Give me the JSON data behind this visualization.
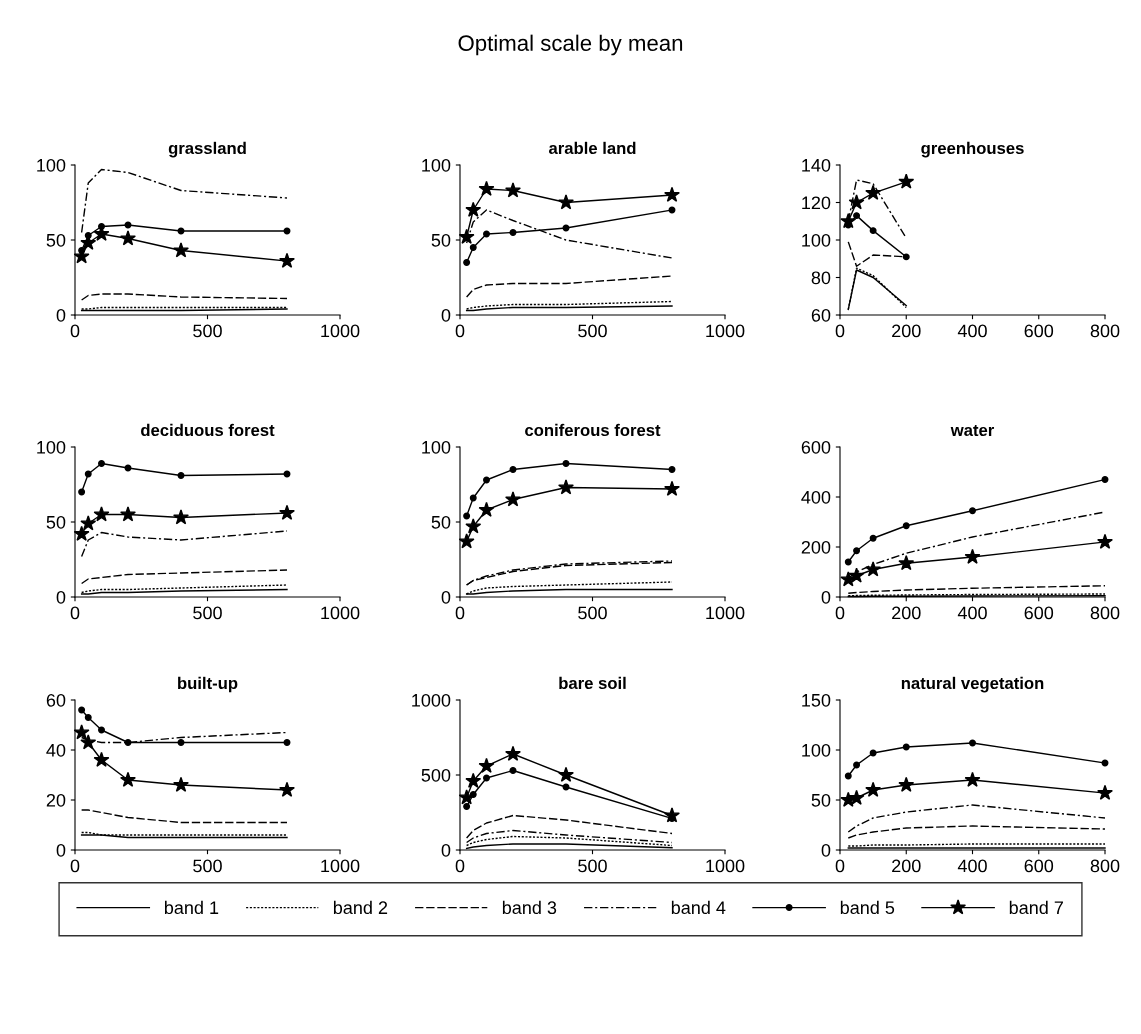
{
  "chart_data": [
    {
      "type": "line",
      "title": "grassland",
      "annotations": [
        "Optimal scale by mean"
      ],
      "x": [
        25,
        50,
        100,
        200,
        400,
        800
      ],
      "xlim": [
        0,
        1000
      ],
      "xticks": [
        0,
        500,
        1000
      ],
      "ylim": [
        0,
        100
      ],
      "yticks": [
        0,
        50,
        100
      ],
      "legend": "bottom",
      "grid": false,
      "series": [
        {
          "name": "band 1",
          "color": "#000000",
          "line_style": "solid",
          "marker": "none",
          "values": [
            3,
            3,
            3,
            3,
            3,
            4
          ]
        },
        {
          "name": "band 2",
          "color": "#000000",
          "line_style": "dotted",
          "marker": "none",
          "values": [
            4,
            4,
            5,
            5,
            5,
            5
          ]
        },
        {
          "name": "band 3",
          "color": "#000000",
          "line_style": "dashed",
          "marker": "none",
          "values": [
            10,
            13,
            14,
            14,
            12,
            11
          ]
        },
        {
          "name": "band 4",
          "color": "#000000",
          "line_style": "dashdot",
          "marker": "none",
          "values": [
            55,
            88,
            97,
            95,
            83,
            78
          ]
        },
        {
          "name": "band 5",
          "color": "#000000",
          "line_style": "solid",
          "marker": "circle",
          "values": [
            43,
            53,
            59,
            60,
            56,
            56
          ]
        },
        {
          "name": "band 7",
          "color": "#000000",
          "line_style": "solid",
          "marker": "star",
          "values": [
            39,
            48,
            54,
            51,
            43,
            36
          ]
        }
      ]
    },
    {
      "type": "line",
      "title": "arable land",
      "x": [
        25,
        50,
        100,
        200,
        400,
        800
      ],
      "xlim": [
        0,
        1000
      ],
      "xticks": [
        0,
        500,
        1000
      ],
      "ylim": [
        0,
        100
      ],
      "yticks": [
        0,
        50,
        100
      ],
      "grid": false,
      "series": [
        {
          "color": "#000000",
          "line_style": "solid",
          "marker": "none",
          "values": [
            3,
            3,
            4,
            5,
            5,
            6
          ]
        },
        {
          "color": "#000000",
          "line_style": "dotted",
          "marker": "none",
          "values": [
            4,
            5,
            6,
            7,
            7,
            9
          ]
        },
        {
          "color": "#000000",
          "line_style": "dashed",
          "marker": "none",
          "values": [
            12,
            17,
            20,
            21,
            21,
            26
          ]
        },
        {
          "color": "#000000",
          "line_style": "dashdot",
          "marker": "none",
          "values": [
            48,
            62,
            70,
            63,
            50,
            38
          ]
        },
        {
          "color": "#000000",
          "line_style": "solid",
          "marker": "circle",
          "values": [
            35,
            45,
            54,
            55,
            58,
            70
          ]
        },
        {
          "color": "#000000",
          "line_style": "solid",
          "marker": "star",
          "values": [
            52,
            70,
            84,
            83,
            75,
            80
          ]
        }
      ]
    },
    {
      "type": "line",
      "title": "greenhouses",
      "x": [
        25,
        50,
        100,
        200
      ],
      "xlim": [
        0,
        800
      ],
      "xticks": [
        0,
        200,
        400,
        600,
        800
      ],
      "ylim": [
        60,
        140
      ],
      "yticks": [
        60,
        80,
        100,
        120,
        140
      ],
      "grid": false,
      "series": [
        {
          "color": "#000000",
          "line_style": "solid",
          "marker": "none",
          "values": [
            63,
            84,
            80,
            65
          ]
        },
        {
          "color": "#000000",
          "line_style": "dotted",
          "marker": "none",
          "values": [
            63,
            85,
            81,
            64
          ]
        },
        {
          "color": "#000000",
          "line_style": "dashed",
          "marker": "none",
          "values": [
            99,
            86,
            92,
            91
          ]
        },
        {
          "color": "#000000",
          "line_style": "dashdot",
          "marker": "none",
          "values": [
            110,
            132,
            130,
            101
          ]
        },
        {
          "color": "#000000",
          "line_style": "solid",
          "marker": "circle",
          "values": [
            108,
            113,
            105,
            91
          ]
        },
        {
          "color": "#000000",
          "line_style": "solid",
          "marker": "star",
          "values": [
            110,
            120,
            125,
            131
          ]
        }
      ]
    },
    {
      "type": "line",
      "title": "deciduous forest",
      "x": [
        25,
        50,
        100,
        200,
        400,
        800
      ],
      "xlim": [
        0,
        1000
      ],
      "xticks": [
        0,
        500,
        1000
      ],
      "ylim": [
        0,
        100
      ],
      "yticks": [
        0,
        50,
        100
      ],
      "grid": false,
      "series": [
        {
          "color": "#000000",
          "line_style": "solid",
          "marker": "none",
          "values": [
            2,
            2,
            3,
            3,
            4,
            5
          ]
        },
        {
          "color": "#000000",
          "line_style": "dotted",
          "marker": "none",
          "values": [
            3,
            4,
            5,
            5,
            6,
            8
          ]
        },
        {
          "color": "#000000",
          "line_style": "dashed",
          "marker": "none",
          "values": [
            9,
            12,
            13,
            15,
            16,
            18
          ]
        },
        {
          "color": "#000000",
          "line_style": "dashdot",
          "marker": "none",
          "values": [
            27,
            38,
            43,
            40,
            38,
            44
          ]
        },
        {
          "color": "#000000",
          "line_style": "solid",
          "marker": "circle",
          "values": [
            70,
            82,
            89,
            86,
            81,
            82
          ]
        },
        {
          "color": "#000000",
          "line_style": "solid",
          "marker": "star",
          "values": [
            42,
            49,
            55,
            55,
            53,
            56
          ]
        }
      ]
    },
    {
      "type": "line",
      "title": "coniferous forest",
      "x": [
        25,
        50,
        100,
        200,
        400,
        800
      ],
      "xlim": [
        0,
        1000
      ],
      "xticks": [
        0,
        500,
        1000
      ],
      "ylim": [
        0,
        100
      ],
      "yticks": [
        0,
        50,
        100
      ],
      "grid": false,
      "series": [
        {
          "color": "#000000",
          "line_style": "solid",
          "marker": "none",
          "values": [
            2,
            2,
            3,
            4,
            5,
            5
          ]
        },
        {
          "color": "#000000",
          "line_style": "dotted",
          "marker": "none",
          "values": [
            2,
            4,
            6,
            7,
            8,
            10
          ]
        },
        {
          "color": "#000000",
          "line_style": "dashed",
          "marker": "none",
          "values": [
            8,
            11,
            13,
            17,
            21,
            23
          ]
        },
        {
          "color": "#000000",
          "line_style": "dashdot",
          "marker": "none",
          "values": [
            8,
            11,
            14,
            18,
            22,
            24
          ]
        },
        {
          "color": "#000000",
          "line_style": "solid",
          "marker": "circle",
          "values": [
            54,
            66,
            78,
            85,
            89,
            85
          ]
        },
        {
          "color": "#000000",
          "line_style": "solid",
          "marker": "star",
          "values": [
            37,
            47,
            58,
            65,
            73,
            72
          ]
        }
      ]
    },
    {
      "type": "line",
      "title": "water",
      "x": [
        25,
        50,
        100,
        200,
        400,
        800
      ],
      "xlim": [
        0,
        800
      ],
      "xticks": [
        0,
        200,
        400,
        600,
        800
      ],
      "ylim": [
        0,
        600
      ],
      "yticks": [
        0,
        200,
        400,
        600
      ],
      "grid": false,
      "series": [
        {
          "color": "#000000",
          "line_style": "solid",
          "marker": "none",
          "values": [
            2,
            2,
            3,
            3,
            4,
            5
          ]
        },
        {
          "color": "#000000",
          "line_style": "dotted",
          "marker": "none",
          "values": [
            5,
            6,
            7,
            8,
            10,
            12
          ]
        },
        {
          "color": "#000000",
          "line_style": "dashed",
          "marker": "none",
          "values": [
            15,
            18,
            22,
            28,
            35,
            45
          ]
        },
        {
          "color": "#000000",
          "line_style": "dashdot",
          "marker": "none",
          "values": [
            75,
            100,
            130,
            175,
            240,
            340
          ]
        },
        {
          "color": "#000000",
          "line_style": "solid",
          "marker": "circle",
          "values": [
            140,
            185,
            235,
            285,
            345,
            470
          ]
        },
        {
          "color": "#000000",
          "line_style": "solid",
          "marker": "star",
          "values": [
            70,
            85,
            110,
            135,
            160,
            220
          ]
        }
      ]
    },
    {
      "type": "line",
      "title": "built-up",
      "x": [
        25,
        50,
        100,
        200,
        400,
        800
      ],
      "xlim": [
        0,
        1000
      ],
      "xticks": [
        0,
        500,
        1000
      ],
      "ylim": [
        0,
        60
      ],
      "yticks": [
        0,
        20,
        40,
        60
      ],
      "grid": false,
      "series": [
        {
          "color": "#000000",
          "line_style": "solid",
          "marker": "none",
          "values": [
            6,
            6,
            6,
            5,
            5,
            5
          ]
        },
        {
          "color": "#000000",
          "line_style": "dotted",
          "marker": "none",
          "values": [
            7,
            7,
            6,
            6,
            6,
            6
          ]
        },
        {
          "color": "#000000",
          "line_style": "dashed",
          "marker": "none",
          "values": [
            16,
            16,
            15,
            13,
            11,
            11
          ]
        },
        {
          "color": "#000000",
          "line_style": "dashdot",
          "marker": "none",
          "values": [
            45,
            44,
            43,
            43,
            45,
            47
          ]
        },
        {
          "color": "#000000",
          "line_style": "solid",
          "marker": "circle",
          "values": [
            56,
            53,
            48,
            43,
            43,
            43
          ]
        },
        {
          "color": "#000000",
          "line_style": "solid",
          "marker": "star",
          "values": [
            47,
            43,
            36,
            28,
            26,
            24
          ]
        }
      ]
    },
    {
      "type": "line",
      "title": "bare soil",
      "x": [
        25,
        50,
        100,
        200,
        400,
        800
      ],
      "xlim": [
        0,
        1000
      ],
      "xticks": [
        0,
        500,
        1000
      ],
      "ylim": [
        0,
        1000
      ],
      "yticks": [
        0,
        500,
        1000
      ],
      "grid": false,
      "series": [
        {
          "color": "#000000",
          "line_style": "solid",
          "marker": "none",
          "values": [
            10,
            20,
            30,
            40,
            40,
            15
          ]
        },
        {
          "color": "#000000",
          "line_style": "dotted",
          "marker": "none",
          "values": [
            30,
            50,
            70,
            90,
            80,
            30
          ]
        },
        {
          "color": "#000000",
          "line_style": "dashed",
          "marker": "none",
          "values": [
            80,
            130,
            180,
            230,
            200,
            110
          ]
        },
        {
          "color": "#000000",
          "line_style": "dashdot",
          "marker": "none",
          "values": [
            50,
            80,
            110,
            130,
            100,
            50
          ]
        },
        {
          "color": "#000000",
          "line_style": "solid",
          "marker": "circle",
          "values": [
            290,
            370,
            480,
            530,
            420,
            210
          ]
        },
        {
          "color": "#000000",
          "line_style": "solid",
          "marker": "star",
          "values": [
            350,
            460,
            560,
            640,
            500,
            230
          ]
        }
      ]
    },
    {
      "type": "line",
      "title": "natural vegetation",
      "x": [
        25,
        50,
        100,
        200,
        400,
        800
      ],
      "xlim": [
        0,
        800
      ],
      "xticks": [
        0,
        200,
        400,
        600,
        800
      ],
      "ylim": [
        0,
        150
      ],
      "yticks": [
        0,
        50,
        100,
        150
      ],
      "grid": false,
      "series": [
        {
          "color": "#000000",
          "line_style": "solid",
          "marker": "none",
          "values": [
            2,
            2,
            2,
            2,
            2,
            2
          ]
        },
        {
          "color": "#000000",
          "line_style": "dotted",
          "marker": "none",
          "values": [
            4,
            4,
            5,
            5,
            6,
            6
          ]
        },
        {
          "color": "#000000",
          "line_style": "dashed",
          "marker": "none",
          "values": [
            12,
            15,
            18,
            22,
            24,
            21
          ]
        },
        {
          "color": "#000000",
          "line_style": "dashdot",
          "marker": "none",
          "values": [
            18,
            24,
            32,
            38,
            45,
            32
          ]
        },
        {
          "color": "#000000",
          "line_style": "solid",
          "marker": "circle",
          "values": [
            74,
            85,
            97,
            103,
            107,
            87
          ]
        },
        {
          "color": "#000000",
          "line_style": "solid",
          "marker": "star",
          "values": [
            50,
            52,
            60,
            65,
            70,
            57
          ]
        }
      ]
    }
  ]
}
